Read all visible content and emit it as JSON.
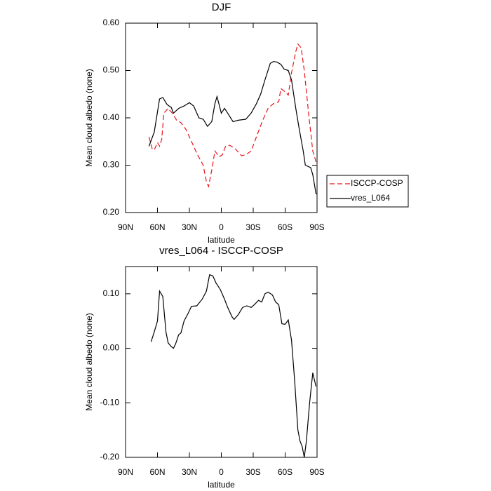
{
  "chart_data": [
    {
      "type": "line",
      "title": "DJF",
      "xlabel": "latitude",
      "ylabel": "Mean cloud albedo (none)",
      "xlim": [
        90,
        -90
      ],
      "xticks": [
        {
          "value": 90,
          "label": "90N"
        },
        {
          "value": 60,
          "label": "60N"
        },
        {
          "value": 30,
          "label": "30N"
        },
        0,
        {
          "value": -30,
          "label": "30S"
        },
        {
          "value": -60,
          "label": "60S"
        },
        {
          "value": -90,
          "label": "90S"
        }
      ],
      "ylim": [
        0.2,
        0.6
      ],
      "yticks": [
        {
          "value": 0.2,
          "label": "0.20"
        },
        {
          "value": 0.3,
          "label": "0.30"
        },
        {
          "value": 0.4,
          "label": "0.40"
        },
        {
          "value": 0.5,
          "label": "0.50"
        },
        {
          "value": 0.6,
          "label": "0.60"
        }
      ],
      "legend": "right",
      "series": [
        {
          "name": "ISCCP-COSP",
          "color": "#e8141a",
          "line_style": "dashed",
          "x": [
            68,
            65,
            63,
            60,
            58,
            56,
            54,
            50,
            46,
            42,
            38,
            33,
            29,
            23,
            17,
            14,
            12,
            9,
            6,
            2,
            -1,
            -4,
            -8,
            -13,
            -19,
            -23,
            -28,
            -33,
            -39,
            -44,
            -49,
            -54,
            -56,
            -60,
            -63,
            -66,
            -70,
            -72,
            -75,
            -78,
            -82,
            -86,
            -90
          ],
          "values": [
            0.36,
            0.335,
            0.332,
            0.348,
            0.34,
            0.355,
            0.41,
            0.42,
            0.41,
            0.395,
            0.39,
            0.375,
            0.355,
            0.325,
            0.3,
            0.265,
            0.255,
            0.29,
            0.33,
            0.318,
            0.322,
            0.34,
            0.342,
            0.335,
            0.32,
            0.322,
            0.33,
            0.36,
            0.395,
            0.42,
            0.43,
            0.434,
            0.462,
            0.455,
            0.448,
            0.495,
            0.54,
            0.556,
            0.548,
            0.5,
            0.41,
            0.33,
            0.3
          ]
        },
        {
          "name": "vres_L064",
          "color": "#000000",
          "line_style": "solid",
          "x": [
            68,
            63,
            58,
            55,
            51,
            47,
            45,
            40,
            35,
            30,
            26,
            21,
            17,
            13,
            9,
            6,
            4,
            0,
            -3,
            -6,
            -11,
            -16,
            -23,
            -28,
            -33,
            -37,
            -41,
            -46,
            -49,
            -52,
            -56,
            -59,
            -63,
            -66,
            -70,
            -73,
            -77,
            -79,
            -84,
            -86,
            -89,
            -90
          ],
          "values": [
            0.34,
            0.37,
            0.44,
            0.443,
            0.428,
            0.422,
            0.41,
            0.42,
            0.425,
            0.432,
            0.425,
            0.4,
            0.397,
            0.382,
            0.392,
            0.43,
            0.445,
            0.41,
            0.42,
            0.41,
            0.392,
            0.395,
            0.397,
            0.41,
            0.43,
            0.45,
            0.48,
            0.515,
            0.519,
            0.518,
            0.513,
            0.503,
            0.5,
            0.48,
            0.42,
            0.38,
            0.33,
            0.3,
            0.295,
            0.28,
            0.24,
            0.24
          ]
        }
      ]
    },
    {
      "type": "line",
      "title": "vres_L064 - ISCCP-COSP",
      "xlabel": "latitude",
      "ylabel": "Mean cloud albedo (none)",
      "xlim": [
        90,
        -90
      ],
      "xticks": [
        {
          "value": 90,
          "label": "90N"
        },
        {
          "value": 60,
          "label": "60N"
        },
        {
          "value": 30,
          "label": "30N"
        },
        0,
        {
          "value": -30,
          "label": "30S"
        },
        {
          "value": -60,
          "label": "60S"
        },
        {
          "value": -90,
          "label": "90S"
        }
      ],
      "ylim": [
        -0.2,
        0.15
      ],
      "yticks": [
        {
          "value": -0.2,
          "label": "-0.20"
        },
        {
          "value": -0.1,
          "label": "-0.10"
        },
        {
          "value": 0,
          "label": "0.00"
        },
        {
          "value": 0.1,
          "label": "0.10"
        }
      ],
      "color": "#000000",
      "x": [
        66,
        63,
        60,
        58,
        55,
        52,
        50,
        47,
        45,
        43,
        40,
        38,
        35,
        31,
        28,
        23,
        18,
        14,
        11,
        8,
        5,
        1,
        -3,
        -6,
        -10,
        -12,
        -16,
        -20,
        -24,
        -28,
        -31,
        -35,
        -38,
        -41,
        -44,
        -48,
        -51,
        -54,
        -57,
        -60,
        -63,
        -66,
        -69,
        -72,
        -74,
        -76,
        -78,
        -80,
        -83,
        -86,
        -89
      ],
      "values": [
        0.012,
        0.03,
        0.05,
        0.105,
        0.095,
        0.03,
        0.01,
        0.003,
        0.0,
        0.008,
        0.025,
        0.028,
        0.05,
        0.065,
        0.077,
        0.078,
        0.09,
        0.105,
        0.135,
        0.133,
        0.12,
        0.108,
        0.09,
        0.075,
        0.058,
        0.053,
        0.062,
        0.075,
        0.078,
        0.075,
        0.08,
        0.088,
        0.085,
        0.1,
        0.103,
        0.098,
        0.085,
        0.08,
        0.045,
        0.044,
        0.052,
        0.015,
        -0.06,
        -0.15,
        -0.17,
        -0.18,
        -0.2,
        -0.17,
        -0.1,
        -0.045,
        -0.07
      ]
    }
  ]
}
